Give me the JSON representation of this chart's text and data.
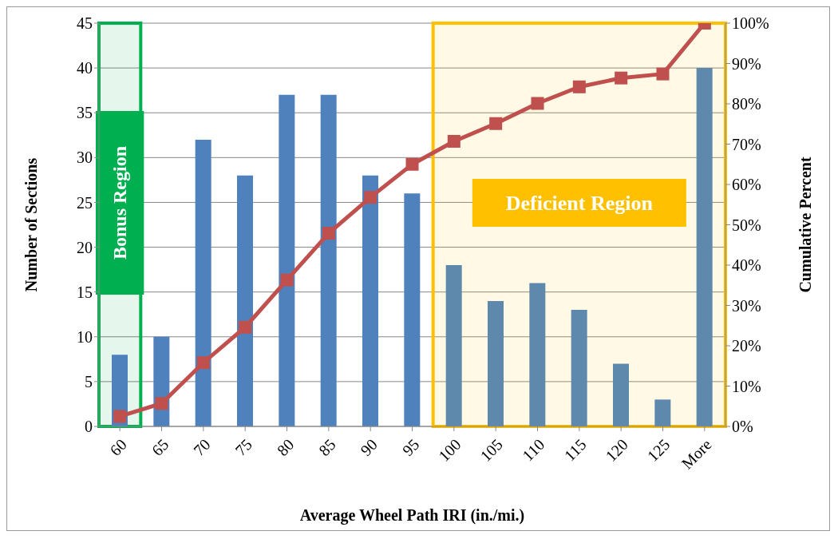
{
  "chart_data": {
    "type": "bar",
    "xlabel": "Average Wheel Path IRI (in./mi.)",
    "ylabel": "Number of Sections",
    "y2label": "Cumulative Percent",
    "categories": [
      "60",
      "65",
      "70",
      "75",
      "80",
      "85",
      "90",
      "95",
      "100",
      "105",
      "110",
      "115",
      "120",
      "125",
      "More"
    ],
    "series": [
      {
        "color": "#4f81bd",
        "colors": [
          "#4f81bd",
          "#4f81bd",
          "#4f81bd",
          "#4f81bd",
          "#4f81bd",
          "#4f81bd",
          "#4f81bd",
          "#4f81bd",
          "#5f88ad",
          "#5f88ad",
          "#5f88ad",
          "#5f88ad",
          "#5f88ad",
          "#5f88ad",
          "#5f88ad"
        ],
        "values": [
          8,
          10,
          32,
          28,
          37,
          37,
          28,
          26,
          18,
          14,
          16,
          13,
          7,
          3,
          40
        ]
      },
      {
        "type": "line",
        "axis": "y2",
        "color": "#c0504d",
        "marker": "square",
        "values": [
          2.5,
          5.7,
          15.8,
          24.6,
          36.3,
          47.9,
          56.8,
          65,
          70.7,
          75.1,
          80.1,
          84.2,
          86.4,
          87.4,
          100
        ]
      }
    ],
    "ylim": [
      0,
      45
    ],
    "yticks": [
      0,
      5,
      10,
      15,
      20,
      25,
      30,
      35,
      40,
      45
    ],
    "y2lim": [
      0,
      100
    ],
    "y2ticks": [
      {
        "value": 0,
        "label": "0%"
      },
      {
        "value": 10,
        "label": "10%"
      },
      {
        "value": 20,
        "label": "20%"
      },
      {
        "value": 30,
        "label": "30%"
      },
      {
        "value": 40,
        "label": "40%"
      },
      {
        "value": 50,
        "label": "50%"
      },
      {
        "value": 60,
        "label": "60%"
      },
      {
        "value": 70,
        "label": "70%"
      },
      {
        "value": 80,
        "label": "80%"
      },
      {
        "value": 90,
        "label": "90%"
      },
      {
        "value": 100,
        "label": "100%"
      }
    ],
    "grid": "y",
    "legend": false,
    "bands": [
      {
        "axis": "x",
        "from": "60",
        "to": "60",
        "label": "Bonus Region",
        "color": "#00b050"
      },
      {
        "axis": "x",
        "from": "100",
        "to": "More",
        "label": "Deficient Region",
        "color": "#ffc000"
      }
    ]
  }
}
